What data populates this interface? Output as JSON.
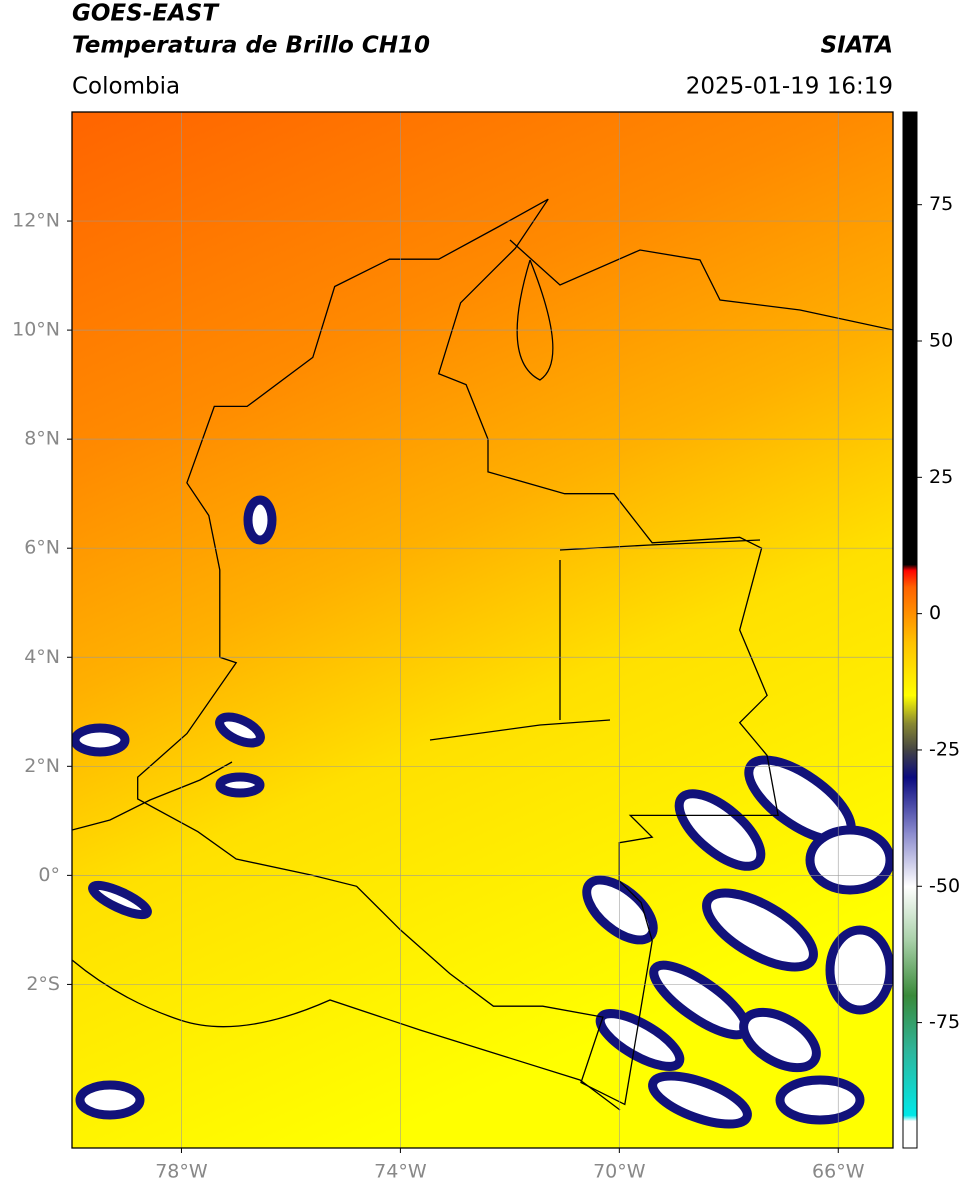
{
  "header": {
    "satellite": "GOES-EAST",
    "product": "Temperatura de Brillo CH10",
    "agency": "SIATA",
    "region": "Colombia",
    "datetime": "2025-01-19 16:19"
  },
  "map": {
    "lonlim": [
      -80,
      -65
    ],
    "latlim": [
      -5,
      14
    ],
    "grid": true,
    "lonticks": [
      {
        "value": -78,
        "label": "78°W"
      },
      {
        "value": -74,
        "label": "74°W"
      },
      {
        "value": -70,
        "label": "70°W"
      },
      {
        "value": -66,
        "label": "66°W"
      }
    ],
    "latticks": [
      {
        "value": 12,
        "label": "12°N"
      },
      {
        "value": 10,
        "label": "10°N"
      },
      {
        "value": 8,
        "label": "8°N"
      },
      {
        "value": 6,
        "label": "6°N"
      },
      {
        "value": 4,
        "label": "4°N"
      },
      {
        "value": 2,
        "label": "2°N"
      },
      {
        "value": 0,
        "label": "0°"
      },
      {
        "value": -2,
        "label": "2°S"
      }
    ]
  },
  "colorbar": {
    "lim": [
      -98,
      92
    ],
    "ticks": [
      75,
      50,
      25,
      0,
      -25,
      -50,
      -75
    ],
    "stops": [
      {
        "value": -98,
        "color": "#ffffff"
      },
      {
        "value": -93,
        "color": "#ffffff"
      },
      {
        "value": -92,
        "color": "#00e8e8"
      },
      {
        "value": -80,
        "color": "#2fb59a"
      },
      {
        "value": -70,
        "color": "#3a8a3a"
      },
      {
        "value": -60,
        "color": "#a8d0a8"
      },
      {
        "value": -50,
        "color": "#ffffff"
      },
      {
        "value": -40,
        "color": "#8888cc"
      },
      {
        "value": -30,
        "color": "#0a0a80"
      },
      {
        "value": -25,
        "color": "#444444"
      },
      {
        "value": -20,
        "color": "#8a8a30"
      },
      {
        "value": -15,
        "color": "#ffff00"
      },
      {
        "value": -5,
        "color": "#ffc000"
      },
      {
        "value": 5,
        "color": "#ff6000"
      },
      {
        "value": 8,
        "color": "#ff0000"
      },
      {
        "value": 9,
        "color": "#000000"
      },
      {
        "value": 92,
        "color": "#000000"
      }
    ]
  }
}
